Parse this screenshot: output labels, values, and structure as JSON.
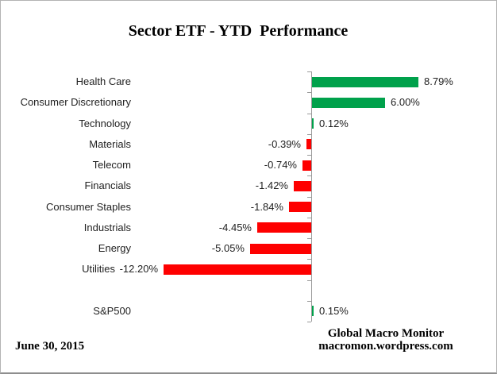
{
  "title": "Sector ETF - YTD  Performance",
  "chart_data": {
    "type": "bar",
    "orientation": "horizontal",
    "title": "Sector ETF - YTD  Performance",
    "categories": [
      "Health Care",
      "Consumer Discretionary",
      "Technology",
      "Materials",
      "Telecom",
      "Financials",
      "Consumer Staples",
      "Industrials",
      "Energy",
      "Utilities",
      "",
      "S&P500"
    ],
    "values": [
      8.79,
      6.0,
      0.12,
      -0.39,
      -0.74,
      -1.42,
      -1.84,
      -4.45,
      -5.05,
      -12.2,
      null,
      0.15
    ],
    "value_labels": [
      "8.79%",
      "6.00%",
      "0.12%",
      "-0.39%",
      "-0.74%",
      "-1.42%",
      "-1.84%",
      "-4.45%",
      "-5.05%",
      "-12.20%",
      "",
      "0.15%"
    ],
    "xlabel": "",
    "ylabel": "",
    "xlim": [
      -13,
      10
    ],
    "baseline": 0,
    "grid": false,
    "legend": false,
    "bar_colors": {
      "positive": "#00a14b",
      "negative": "#fe0000"
    },
    "axis_color": "#9a9a9a"
  },
  "footer": {
    "date": "June 30, 2015",
    "source_line1": "Global Macro Monitor",
    "source_line2": "macromon.wordpress.com"
  }
}
